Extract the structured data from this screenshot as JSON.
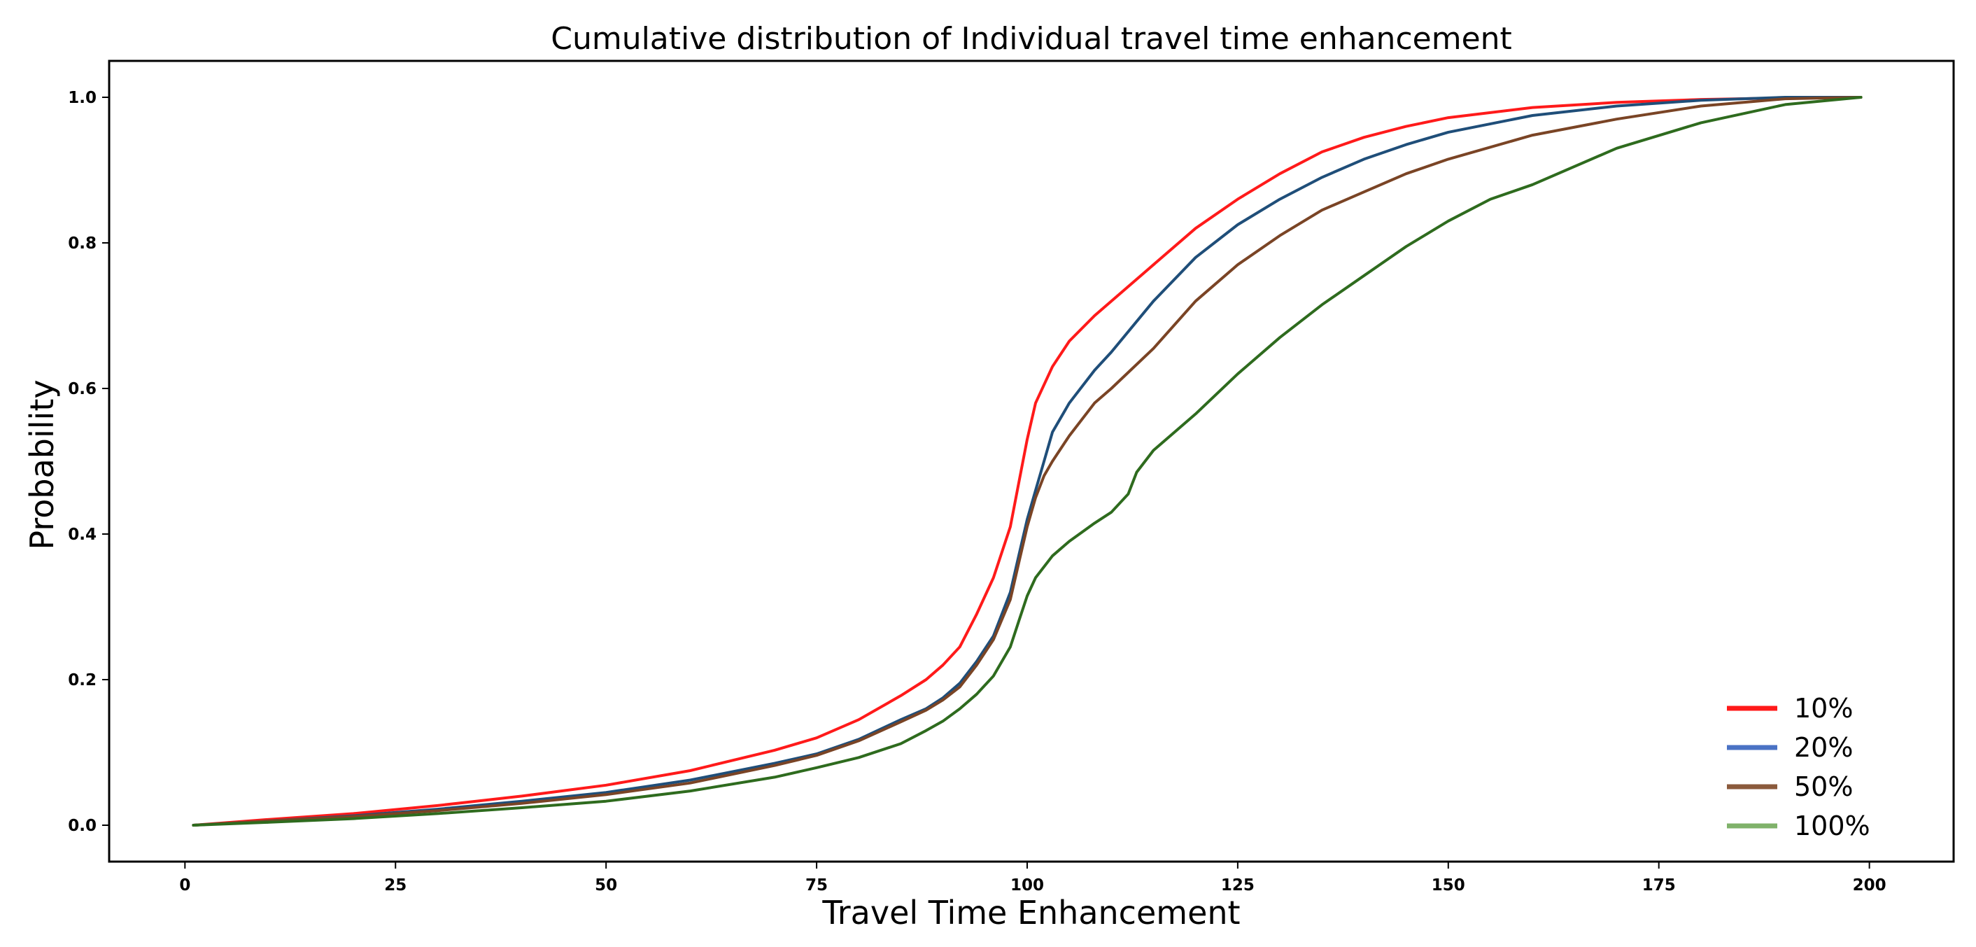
{
  "chart_data": {
    "type": "line",
    "title": "Cumulative distribution of Individual travel time enhancement",
    "xlabel": "Travel Time Enhancement",
    "ylabel": "Probability",
    "xlim": [
      -9,
      210
    ],
    "ylim": [
      -0.05,
      1.05
    ],
    "xticks": [
      0,
      25,
      50,
      75,
      100,
      125,
      150,
      175,
      200
    ],
    "xtick_labels": [
      "0",
      "25",
      "50",
      "75",
      "100",
      "125",
      "150",
      "175",
      "200"
    ],
    "yticks": [
      0.0,
      0.2,
      0.4,
      0.6,
      0.8,
      1.0
    ],
    "ytick_labels": [
      "0.0",
      "0.2",
      "0.4",
      "0.6",
      "0.8",
      "1.0"
    ],
    "grid": false,
    "legend": "lower-right",
    "series": [
      {
        "name": "10%",
        "color": "#ff1a1a",
        "line_color": "#ff1a1a",
        "x": [
          1,
          10,
          20,
          30,
          40,
          50,
          60,
          70,
          75,
          80,
          85,
          88,
          90,
          92,
          94,
          96,
          98,
          99,
          100,
          101,
          103,
          105,
          108,
          110,
          115,
          120,
          125,
          130,
          135,
          140,
          145,
          150,
          160,
          170,
          180,
          190,
          199
        ],
        "y": [
          0.0,
          0.008,
          0.016,
          0.027,
          0.04,
          0.055,
          0.075,
          0.103,
          0.12,
          0.145,
          0.178,
          0.2,
          0.22,
          0.245,
          0.29,
          0.34,
          0.41,
          0.47,
          0.53,
          0.58,
          0.63,
          0.665,
          0.7,
          0.72,
          0.77,
          0.82,
          0.86,
          0.895,
          0.925,
          0.945,
          0.96,
          0.972,
          0.986,
          0.993,
          0.997,
          0.999,
          1.0
        ]
      },
      {
        "name": "20%",
        "color": "#4a72c4",
        "line_color": "#1f4e79",
        "x": [
          1,
          10,
          20,
          30,
          40,
          50,
          60,
          70,
          75,
          80,
          85,
          88,
          90,
          92,
          94,
          96,
          98,
          99,
          100,
          101,
          102,
          103,
          105,
          108,
          110,
          115,
          120,
          125,
          130,
          135,
          140,
          145,
          150,
          160,
          170,
          180,
          190,
          199
        ],
        "y": [
          0.0,
          0.006,
          0.013,
          0.022,
          0.033,
          0.045,
          0.062,
          0.085,
          0.098,
          0.118,
          0.145,
          0.16,
          0.175,
          0.195,
          0.225,
          0.26,
          0.32,
          0.37,
          0.42,
          0.46,
          0.5,
          0.54,
          0.58,
          0.625,
          0.65,
          0.72,
          0.78,
          0.825,
          0.86,
          0.89,
          0.915,
          0.935,
          0.952,
          0.975,
          0.988,
          0.996,
          1.0,
          1.0
        ]
      },
      {
        "name": "50%",
        "color": "#8b5a3c",
        "line_color": "#7a4425",
        "x": [
          1,
          10,
          20,
          30,
          40,
          50,
          60,
          70,
          75,
          80,
          85,
          88,
          90,
          92,
          94,
          96,
          98,
          99,
          100,
          101,
          102,
          103,
          105,
          108,
          110,
          115,
          120,
          125,
          130,
          135,
          140,
          145,
          150,
          160,
          170,
          180,
          190,
          199
        ],
        "y": [
          0.0,
          0.006,
          0.012,
          0.02,
          0.03,
          0.042,
          0.058,
          0.082,
          0.096,
          0.116,
          0.142,
          0.158,
          0.172,
          0.19,
          0.22,
          0.255,
          0.31,
          0.36,
          0.41,
          0.45,
          0.48,
          0.5,
          0.535,
          0.58,
          0.6,
          0.655,
          0.72,
          0.77,
          0.81,
          0.845,
          0.87,
          0.895,
          0.915,
          0.948,
          0.97,
          0.988,
          0.998,
          1.0
        ]
      },
      {
        "name": "100%",
        "color": "#7fb26a",
        "line_color": "#2e6b1e",
        "x": [
          1,
          10,
          20,
          30,
          40,
          50,
          60,
          70,
          75,
          80,
          85,
          88,
          90,
          92,
          94,
          96,
          98,
          99,
          100,
          101,
          103,
          105,
          108,
          110,
          112,
          113,
          115,
          120,
          125,
          130,
          135,
          140,
          145,
          150,
          155,
          160,
          170,
          180,
          190,
          199
        ],
        "y": [
          0.0,
          0.004,
          0.009,
          0.016,
          0.024,
          0.033,
          0.047,
          0.066,
          0.079,
          0.093,
          0.112,
          0.13,
          0.143,
          0.16,
          0.18,
          0.205,
          0.245,
          0.28,
          0.315,
          0.34,
          0.37,
          0.39,
          0.415,
          0.43,
          0.455,
          0.485,
          0.515,
          0.565,
          0.62,
          0.67,
          0.715,
          0.755,
          0.795,
          0.83,
          0.86,
          0.88,
          0.93,
          0.965,
          0.99,
          1.0
        ]
      }
    ]
  }
}
